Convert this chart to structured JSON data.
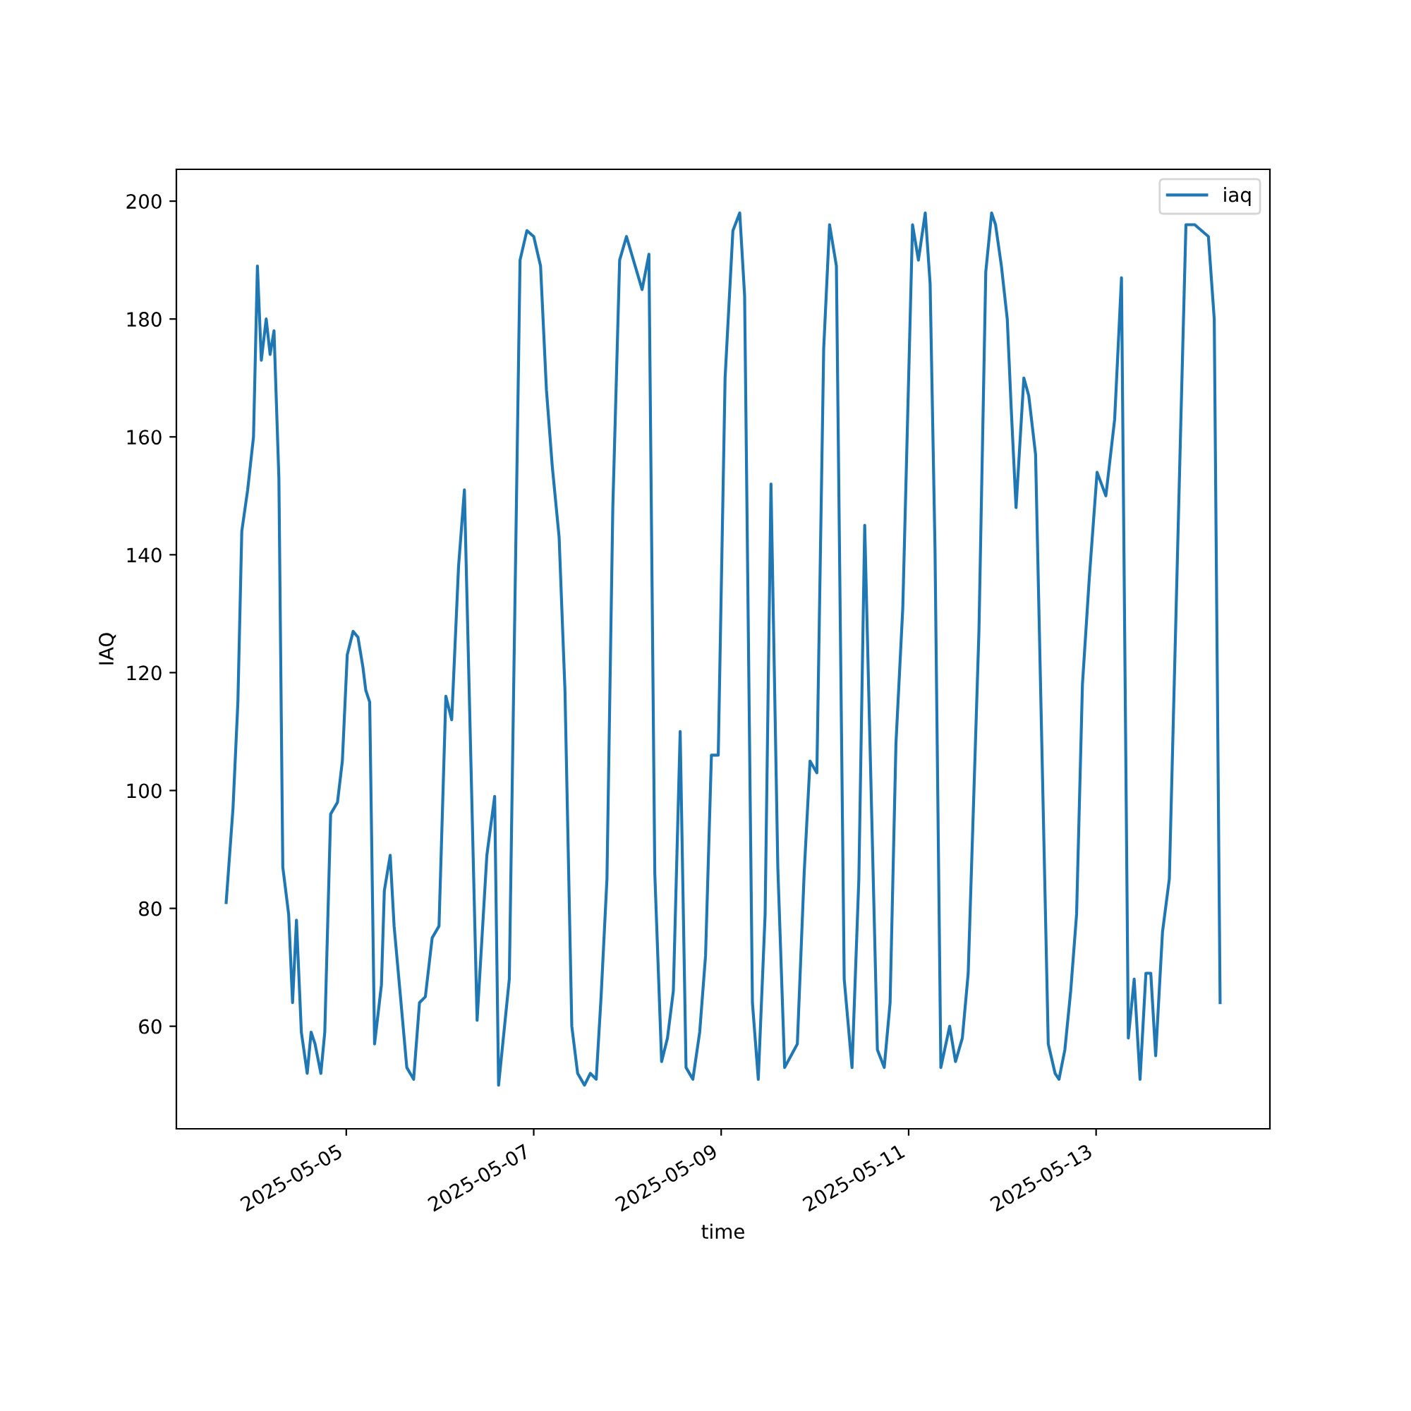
{
  "chart_data": {
    "type": "line",
    "xlabel": "time",
    "ylabel": "IAQ",
    "legend": "top right",
    "grid": false,
    "xlim": [
      "2025-05-03T04:30",
      "2025-05-14T20:30"
    ],
    "xticks": [
      "2025-05-05",
      "2025-05-07",
      "2025-05-09",
      "2025-05-11",
      "2025-05-13"
    ],
    "ylim": [
      42.6,
      205.4
    ],
    "yticks": [
      60,
      80,
      100,
      120,
      140,
      160,
      180,
      200
    ],
    "x": [
      "2025-05-03T17:15",
      "2025-05-03T19:00",
      "2025-05-03T20:15",
      "2025-05-03T21:15",
      "2025-05-03T22:45",
      "2025-05-04T00:15",
      "2025-05-04T01:15",
      "2025-05-04T02:15",
      "2025-05-04T03:30",
      "2025-05-04T04:30",
      "2025-05-04T05:30",
      "2025-05-04T06:45",
      "2025-05-04T07:45",
      "2025-05-04T09:15",
      "2025-05-04T10:15",
      "2025-05-04T11:15",
      "2025-05-04T12:30",
      "2025-05-04T14:00",
      "2025-05-04T15:00",
      "2025-05-04T16:00",
      "2025-05-04T17:30",
      "2025-05-04T18:30",
      "2025-05-04T20:00",
      "2025-05-04T21:45",
      "2025-05-04T23:00",
      "2025-05-05T00:15",
      "2025-05-05T01:45",
      "2025-05-05T03:00",
      "2025-05-05T04:15",
      "2025-05-05T05:00",
      "2025-05-05T06:00",
      "2025-05-05T07:15",
      "2025-05-05T09:00",
      "2025-05-05T09:45",
      "2025-05-05T11:15",
      "2025-05-05T12:15",
      "2025-05-05T13:45",
      "2025-05-05T15:30",
      "2025-05-05T17:15",
      "2025-05-05T18:45",
      "2025-05-05T20:15",
      "2025-05-05T22:00",
      "2025-05-05T23:45",
      "2025-05-06T01:30",
      "2025-05-06T03:00",
      "2025-05-06T04:45",
      "2025-05-06T06:15",
      "2025-05-06T09:30",
      "2025-05-06T12:00",
      "2025-05-06T14:00",
      "2025-05-06T15:00",
      "2025-05-06T17:45",
      "2025-05-06T20:30",
      "2025-05-06T22:15",
      "2025-05-07T00:00",
      "2025-05-07T01:45",
      "2025-05-07T03:15",
      "2025-05-07T04:45",
      "2025-05-07T06:30",
      "2025-05-07T08:00",
      "2025-05-07T09:45",
      "2025-05-07T11:15",
      "2025-05-07T13:00",
      "2025-05-07T14:30",
      "2025-05-07T16:00",
      "2025-05-07T17:15",
      "2025-05-07T18:45",
      "2025-05-07T20:15",
      "2025-05-07T22:00",
      "2025-05-07T23:45",
      "2025-05-08T03:45",
      "2025-05-08T05:30",
      "2025-05-08T07:00",
      "2025-05-08T08:45",
      "2025-05-08T10:15",
      "2025-05-08T11:45",
      "2025-05-08T13:30",
      "2025-05-08T15:00",
      "2025-05-08T16:45",
      "2025-05-08T18:30",
      "2025-05-08T20:00",
      "2025-05-08T21:30",
      "2025-05-08T23:15",
      "2025-05-09T01:00",
      "2025-05-09T03:00",
      "2025-05-09T04:45",
      "2025-05-09T06:00",
      "2025-05-09T08:00",
      "2025-05-09T09:30",
      "2025-05-09T11:15",
      "2025-05-09T12:45",
      "2025-05-09T14:30",
      "2025-05-09T16:15",
      "2025-05-09T19:30",
      "2025-05-09T21:15",
      "2025-05-09T22:45",
      "2025-05-10T00:30",
      "2025-05-10T02:15",
      "2025-05-10T03:45",
      "2025-05-10T05:30",
      "2025-05-10T07:30",
      "2025-05-10T09:30",
      "2025-05-10T11:15",
      "2025-05-10T12:45",
      "2025-05-10T16:00",
      "2025-05-10T17:45",
      "2025-05-10T19:15",
      "2025-05-10T20:45",
      "2025-05-10T22:30",
      "2025-05-11T01:00",
      "2025-05-11T02:30",
      "2025-05-11T04:15",
      "2025-05-11T05:30",
      "2025-05-11T06:45",
      "2025-05-11T08:15",
      "2025-05-11T10:30",
      "2025-05-11T12:00",
      "2025-05-11T13:45",
      "2025-05-11T15:15",
      "2025-05-11T18:00",
      "2025-05-11T19:45",
      "2025-05-11T21:15",
      "2025-05-11T22:15",
      "2025-05-11T23:45",
      "2025-05-12T01:15",
      "2025-05-12T02:15",
      "2025-05-12T03:30",
      "2025-05-12T05:30",
      "2025-05-12T06:45",
      "2025-05-12T08:30",
      "2025-05-12T11:45",
      "2025-05-12T13:30",
      "2025-05-12T14:30",
      "2025-05-12T16:00",
      "2025-05-12T17:30",
      "2025-05-12T19:00",
      "2025-05-12T20:30",
      "2025-05-12T22:15",
      "2025-05-13T00:15",
      "2025-05-13T02:30",
      "2025-05-13T04:45",
      "2025-05-13T06:30",
      "2025-05-13T08:15",
      "2025-05-13T09:45",
      "2025-05-13T11:15",
      "2025-05-13T12:45",
      "2025-05-13T14:00",
      "2025-05-13T15:15",
      "2025-05-13T17:00",
      "2025-05-13T18:45",
      "2025-05-13T21:45",
      "2025-05-13T23:00",
      "2025-05-14T01:15",
      "2025-05-14T04:45",
      "2025-05-14T06:15",
      "2025-05-14T07:45"
    ],
    "series": [
      {
        "name": "iaq",
        "color": "#1f77b4",
        "values": [
          81,
          97,
          115,
          144,
          151,
          160,
          189,
          173,
          180,
          174,
          178,
          153,
          87,
          79,
          64,
          78,
          59,
          52,
          59,
          57,
          52,
          59,
          96,
          98,
          105,
          123,
          127,
          126,
          121,
          117,
          115,
          57,
          67,
          83,
          89,
          77,
          66,
          53,
          51,
          64,
          65,
          75,
          77,
          116,
          112,
          138,
          151,
          61,
          89,
          99,
          50,
          68,
          190,
          195,
          194,
          189,
          168,
          155,
          143,
          117,
          60,
          52,
          50,
          52,
          51,
          65,
          85,
          148,
          190,
          194,
          185,
          191,
          86,
          54,
          58,
          66,
          110,
          53,
          51,
          59,
          72,
          106,
          106,
          170,
          195,
          198,
          184,
          64,
          51,
          79,
          152,
          87,
          53,
          57,
          86,
          105,
          103,
          175,
          196,
          189,
          68,
          53,
          85,
          145,
          56,
          53,
          64,
          108,
          131,
          196,
          190,
          198,
          186,
          141,
          53,
          60,
          54,
          58,
          69,
          127,
          188,
          198,
          196,
          189,
          180,
          165,
          148,
          170,
          167,
          157,
          57,
          52,
          51,
          56,
          66,
          79,
          118,
          136,
          154,
          150,
          163,
          187,
          58,
          68,
          51,
          69,
          69,
          55,
          76,
          85,
          164,
          196,
          196,
          194,
          180,
          64
        ]
      }
    ]
  }
}
